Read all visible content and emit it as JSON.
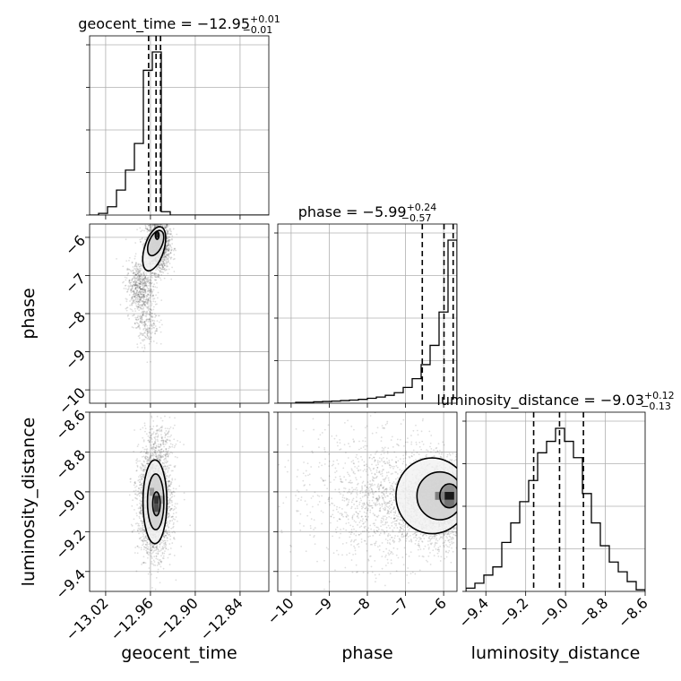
{
  "chart_data": {
    "type": "corner",
    "parameters": [
      "geocent_time",
      "phase",
      "luminosity_distance"
    ],
    "axis_labels": {
      "geocent_time": "geocent_time",
      "phase": "phase",
      "luminosity_distance": "luminosity_distance"
    },
    "ranges": {
      "geocent_time": [
        -13.0415,
        -12.8015
      ],
      "phase": [
        -10.35,
        -5.65
      ],
      "luminosity_distance": [
        -9.5,
        -8.6
      ]
    },
    "ticks": {
      "geocent_time": {
        "values": [
          -13.02,
          -12.96,
          -12.9,
          -12.84
        ],
        "labels": [
          "−13.02",
          "−12.96",
          "−12.90",
          "−12.84"
        ]
      },
      "phase": {
        "values": [
          -10,
          -9,
          -8,
          -7,
          -6
        ],
        "labels": [
          "−10",
          "−9",
          "−8",
          "−7",
          "−6"
        ]
      },
      "luminosity_distance": {
        "values": [
          -9.4,
          -9.2,
          -9.0,
          -8.8,
          -8.6
        ],
        "labels": [
          "−9.4",
          "−9.2",
          "−9.0",
          "−8.8",
          "−8.6"
        ]
      }
    },
    "titles": {
      "geocent_time": {
        "name": "geocent_time",
        "median": "−12.95",
        "plus": "+0.01",
        "minus": "−0.01"
      },
      "phase": {
        "name": "phase",
        "median": "−5.99",
        "plus": "+0.24",
        "minus": "−0.57"
      },
      "luminosity_distance": {
        "name": "luminosity_distance",
        "median": "−9.03",
        "plus": "+0.12",
        "minus": "−0.13"
      }
    },
    "quantiles": {
      "geocent_time": [
        -12.9625,
        -12.9525,
        -12.9465
      ],
      "phase": [
        -6.56,
        -5.99,
        -5.75
      ],
      "luminosity_distance": [
        -9.16,
        -9.03,
        -8.91
      ]
    },
    "histograms": {
      "geocent_time": {
        "bin_edges": [
          -13.0415,
          -13.0295,
          -13.0175,
          -13.0055,
          -12.9935,
          -12.9815,
          -12.9695,
          -12.9575,
          -12.9455,
          -12.9335,
          -12.9215,
          -12.9095,
          -12.8975,
          -12.8855,
          -12.8735,
          -12.8615,
          -12.8495,
          -12.8375,
          -12.8255,
          -12.8135,
          -12.8015
        ],
        "counts": [
          0.0,
          0.01,
          0.05,
          0.15,
          0.27,
          0.43,
          0.87,
          0.98,
          0.02,
          0.0,
          0.0,
          0.0,
          0.0,
          0.0,
          0.0,
          0.0,
          0.0,
          0.0,
          0.0,
          0.0
        ]
      },
      "phase": {
        "bin_edges": [
          -10.35,
          -10.115,
          -9.88,
          -9.645,
          -9.41,
          -9.175,
          -8.94,
          -8.705,
          -8.47,
          -8.235,
          -8.0,
          -7.765,
          -7.53,
          -7.295,
          -7.06,
          -6.825,
          -6.59,
          -6.355,
          -6.12,
          -5.885,
          -5.65
        ],
        "counts": [
          0.0,
          0.0,
          0.005,
          0.005,
          0.008,
          0.01,
          0.012,
          0.015,
          0.018,
          0.022,
          0.028,
          0.035,
          0.045,
          0.06,
          0.09,
          0.14,
          0.22,
          0.33,
          0.52,
          0.93
        ]
      },
      "luminosity_distance": {
        "bin_edges": [
          -9.5,
          -9.455,
          -9.41,
          -9.365,
          -9.32,
          -9.275,
          -9.23,
          -9.185,
          -9.14,
          -9.095,
          -9.05,
          -9.005,
          -8.96,
          -8.915,
          -8.87,
          -8.825,
          -8.78,
          -8.735,
          -8.69,
          -8.645,
          -8.6
        ],
        "counts": [
          0.02,
          0.05,
          0.1,
          0.15,
          0.3,
          0.42,
          0.55,
          0.68,
          0.85,
          0.92,
          1.0,
          0.92,
          0.82,
          0.6,
          0.42,
          0.28,
          0.18,
          0.12,
          0.06,
          0.01
        ]
      }
    },
    "pairs": [
      {
        "x": "geocent_time",
        "y": "phase",
        "clusters": [
          {
            "mean": [
              -12.95,
              -6.2
            ],
            "sd": [
              0.008,
              0.35
            ],
            "n": 1700
          },
          {
            "mean": [
              -12.975,
              -7.3
            ],
            "sd": [
              0.009,
              0.35
            ],
            "n": 600
          },
          {
            "mean": [
              -12.965,
              -8.2
            ],
            "sd": [
              0.008,
              0.35
            ],
            "n": 250
          }
        ],
        "contours": [
          {
            "cx": -12.951,
            "cy": -5.95,
            "rx": 0.0025,
            "ry": 0.1,
            "rot": 0
          },
          {
            "cx": -12.953,
            "cy": -6.15,
            "rx": 0.009,
            "ry": 0.35,
            "rot": 0.4
          },
          {
            "cx": -12.955,
            "cy": -6.3,
            "rx": 0.013,
            "ry": 0.6,
            "rot": 0.3
          }
        ],
        "cells": [
          {
            "x": -12.951,
            "y": -5.94,
            "w": 0.004,
            "h": 0.14,
            "v": 0.85
          }
        ]
      },
      {
        "x": "geocent_time",
        "y": "luminosity_distance",
        "clusters": [
          {
            "mean": [
              -12.954,
              -9.05
            ],
            "sd": [
              0.011,
              0.13
            ],
            "n": 2600
          },
          {
            "mean": [
              -12.945,
              -8.75
            ],
            "sd": [
              0.012,
              0.05
            ],
            "n": 150
          }
        ],
        "contours": [
          {
            "cx": -12.952,
            "cy": -9.06,
            "rx": 0.005,
            "ry": 0.06,
            "rot": 0
          },
          {
            "cx": -12.953,
            "cy": -9.05,
            "rx": 0.011,
            "ry": 0.14,
            "rot": 0
          },
          {
            "cx": -12.954,
            "cy": -9.05,
            "rx": 0.016,
            "ry": 0.21,
            "rot": 0
          }
        ],
        "cells": [
          {
            "x": -12.952,
            "y": -9.04,
            "w": 0.006,
            "h": 0.04,
            "v": 0.8
          },
          {
            "x": -12.952,
            "y": -9.08,
            "w": 0.006,
            "h": 0.04,
            "v": 0.7
          },
          {
            "x": -12.958,
            "y": -9.0,
            "w": 0.006,
            "h": 0.04,
            "v": 0.4
          },
          {
            "x": -12.946,
            "y": -9.04,
            "w": 0.006,
            "h": 0.04,
            "v": 0.35
          }
        ]
      },
      {
        "x": "phase",
        "y": "luminosity_distance",
        "clusters": [
          {
            "mean": [
              -6.0,
              -9.05
            ],
            "sd": [
              0.4,
              0.1
            ],
            "n": 2200
          },
          {
            "mean": [
              -7.2,
              -9.05
            ],
            "sd": [
              0.8,
              0.15
            ],
            "n": 1300
          },
          {
            "mean": [
              -8.5,
              -9.0
            ],
            "sd": [
              1.0,
              0.18
            ],
            "n": 300
          }
        ],
        "contours": [
          {
            "cx": -5.85,
            "cy": -9.02,
            "rx": 0.25,
            "ry": 0.06,
            "rot": 0
          },
          {
            "cx": -6.1,
            "cy": -9.02,
            "rx": 0.6,
            "ry": 0.12,
            "rot": 0
          },
          {
            "cx": -6.3,
            "cy": -9.02,
            "rx": 0.95,
            "ry": 0.19,
            "rot": 0
          }
        ],
        "cells": [
          {
            "x": -5.85,
            "y": -9.02,
            "w": 0.25,
            "h": 0.04,
            "v": 0.9
          },
          {
            "x": -5.85,
            "y": -9.06,
            "w": 0.25,
            "h": 0.04,
            "v": 0.55
          },
          {
            "x": -6.1,
            "y": -9.02,
            "w": 0.25,
            "h": 0.04,
            "v": 0.5
          },
          {
            "x": -5.85,
            "y": -8.98,
            "w": 0.25,
            "h": 0.04,
            "v": 0.45
          }
        ]
      }
    ]
  }
}
